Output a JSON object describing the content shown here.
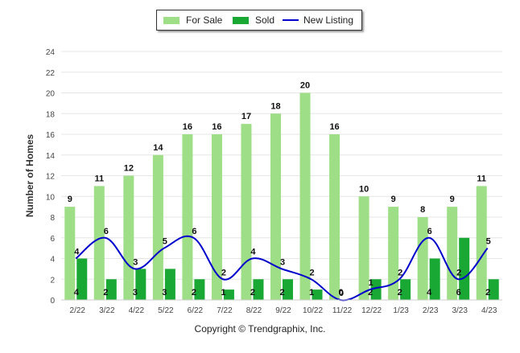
{
  "chart_data": {
    "type": "bar",
    "categories": [
      "2/22",
      "3/22",
      "4/22",
      "5/22",
      "6/22",
      "7/22",
      "8/22",
      "9/22",
      "10/22",
      "11/22",
      "12/22",
      "1/23",
      "2/23",
      "3/23",
      "4/23"
    ],
    "series": [
      {
        "name": "For Sale",
        "kind": "bar",
        "color": "#9ede86",
        "values": [
          9,
          11,
          12,
          14,
          16,
          16,
          17,
          18,
          20,
          16,
          10,
          9,
          8,
          9,
          11
        ]
      },
      {
        "name": "Sold",
        "kind": "bar",
        "color": "#19a833",
        "values": [
          4,
          2,
          3,
          3,
          2,
          1,
          2,
          2,
          1,
          0,
          2,
          2,
          4,
          6,
          2
        ]
      },
      {
        "name": "New Listing",
        "kind": "line",
        "color": "#0000cc",
        "values": [
          4,
          6,
          3,
          5,
          6,
          2,
          4,
          3,
          2,
          0,
          1,
          2,
          6,
          2,
          5
        ]
      }
    ],
    "ylabel": "Number of Homes",
    "xlabel": "",
    "ylim": [
      0,
      24
    ],
    "yticks": [
      0,
      2,
      4,
      6,
      8,
      10,
      12,
      14,
      16,
      18,
      20,
      22,
      24
    ],
    "grid": true,
    "legend_placement": "top-center"
  },
  "legend": {
    "for_sale": "For Sale",
    "sold": "Sold",
    "new_listing": "New Listing"
  },
  "footer": "Copyright © Trendgraphix, Inc."
}
